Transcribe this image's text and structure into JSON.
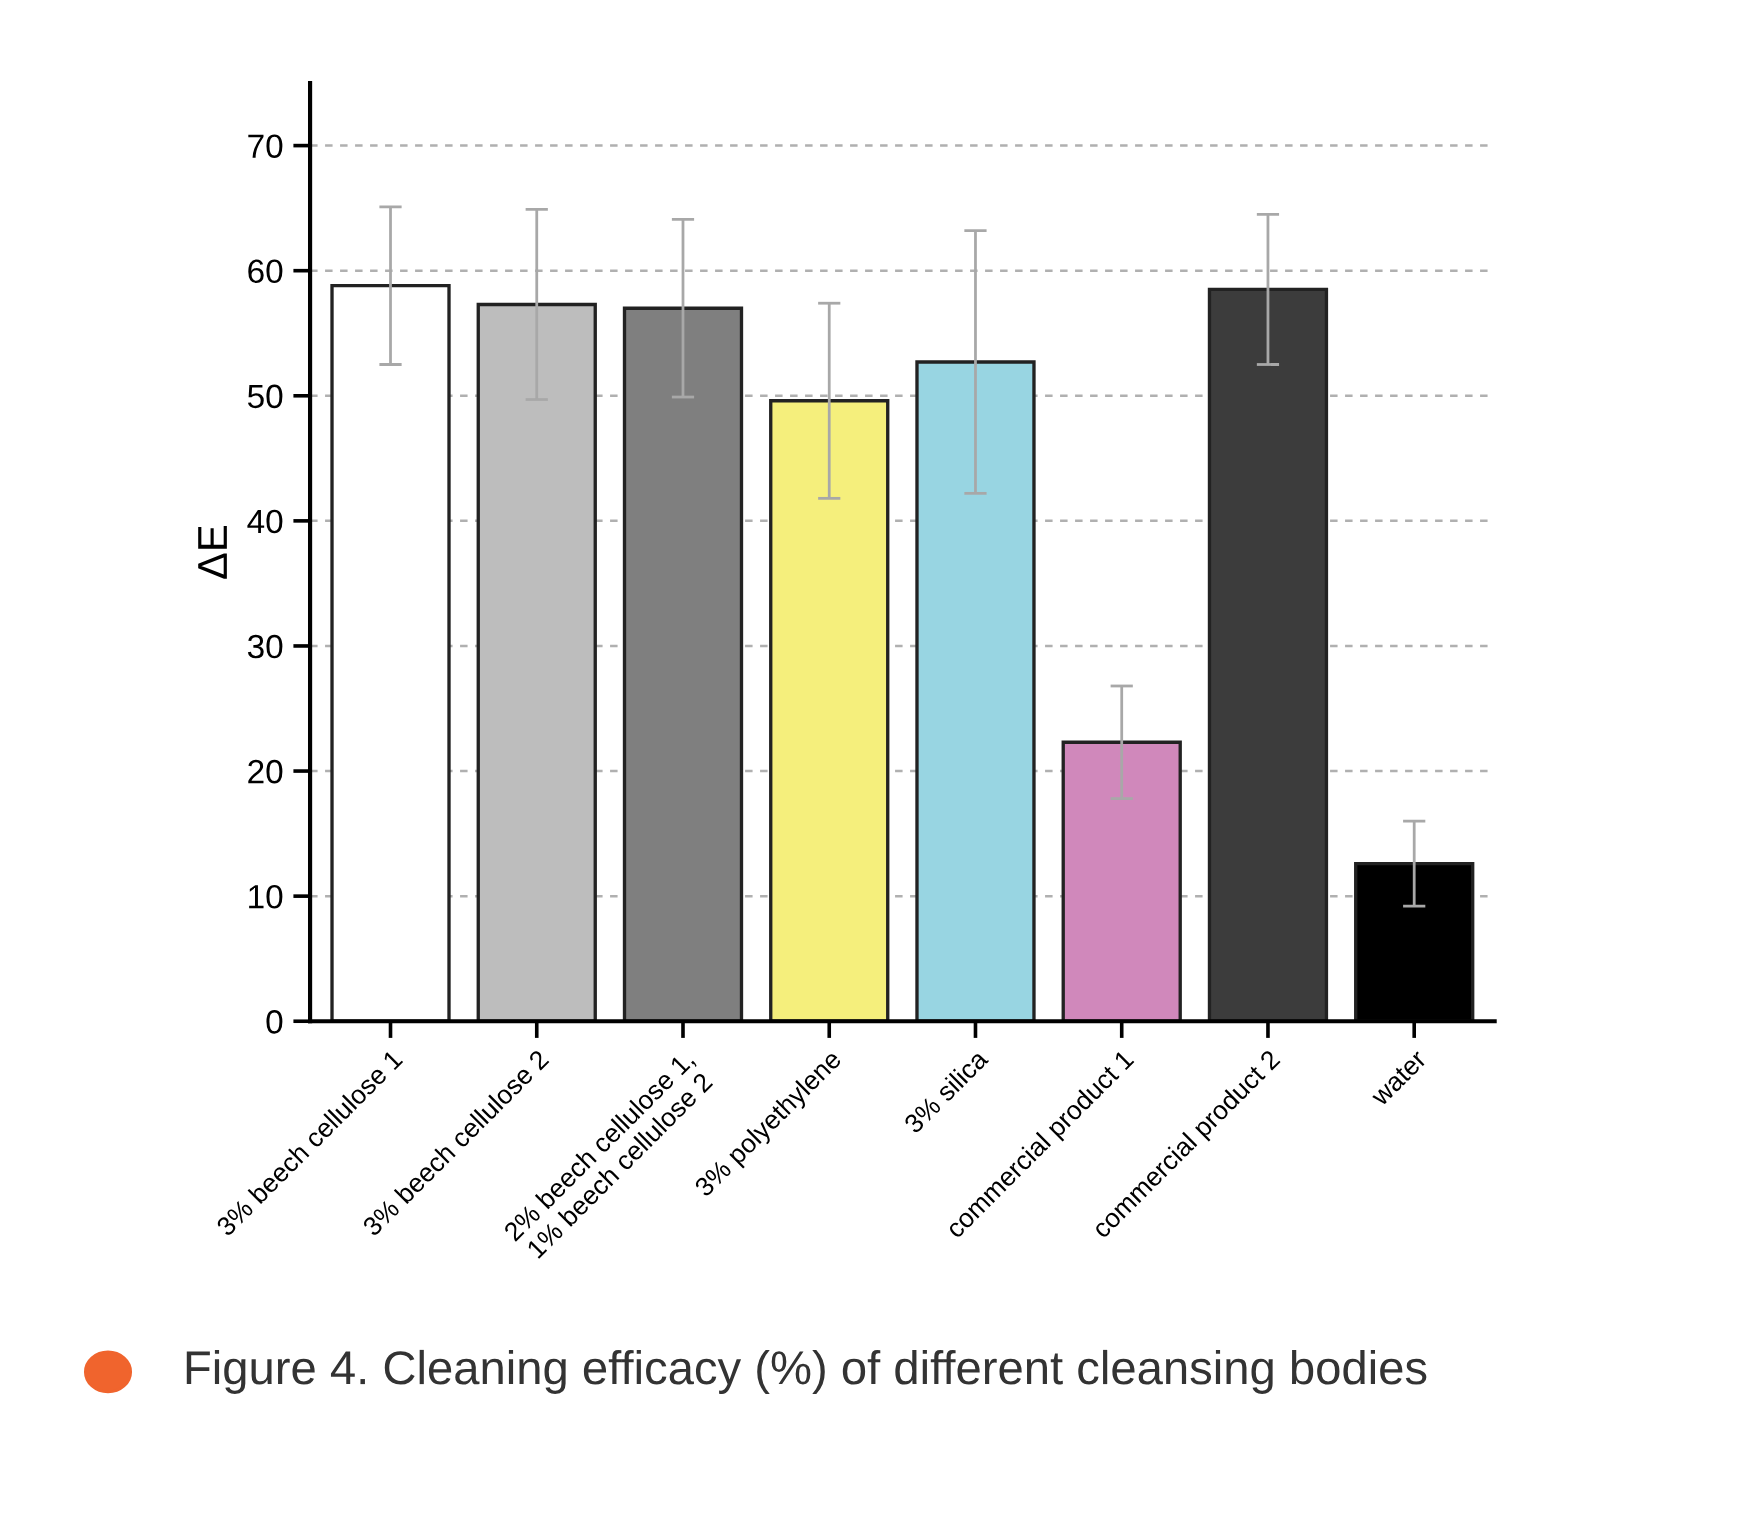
{
  "chart_data": {
    "type": "bar",
    "categories": [
      "3% beech cellulose 1",
      "3% beech cellulose 2",
      "2% beech cellulose 1,\n1% beech cellulose 2",
      "3% polyethylene",
      "3% silica",
      "commercial product 1",
      "commercial product 2",
      "water"
    ],
    "values": [
      58.8,
      57.3,
      57.0,
      49.6,
      52.7,
      22.3,
      58.5,
      12.6
    ],
    "errors": [
      6.3,
      7.6,
      7.1,
      7.8,
      10.5,
      4.5,
      6.0,
      3.4
    ],
    "colors": [
      "#ffffff",
      "#bdbdbd",
      "#7f7f7f",
      "#f5ef7c",
      "#98d5e2",
      "#d088bb",
      "#3c3c3c",
      "#000000"
    ],
    "ylabel": "ΔE",
    "ylim": [
      0,
      75
    ],
    "yticks": [
      0,
      10,
      20,
      30,
      40,
      50,
      60,
      70
    ],
    "grid": "y",
    "annotations": [
      "Figure 4. Cleaning efficacy (%) of different cleansing bodies"
    ]
  }
}
